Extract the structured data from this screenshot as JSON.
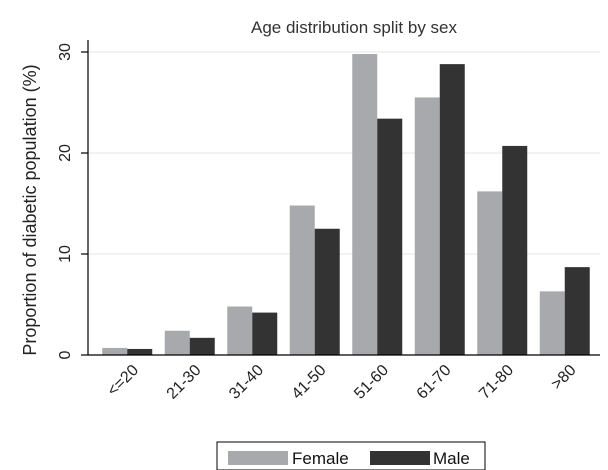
{
  "chart_data": {
    "type": "bar",
    "title": "Age distribution split by sex",
    "xlabel": "",
    "ylabel": "Proportion of diabetic population (%)",
    "categories": [
      "<=20",
      "21-30",
      "31-40",
      "41-50",
      "51-60",
      "61-70",
      "71-80",
      ">80"
    ],
    "series": [
      {
        "name": "Female",
        "color": "#a7a9ac",
        "values": [
          0.7,
          2.4,
          4.8,
          14.8,
          29.8,
          25.5,
          16.2,
          6.3
        ]
      },
      {
        "name": "Male",
        "color": "#333333",
        "values": [
          0.6,
          1.7,
          4.2,
          12.5,
          23.4,
          28.8,
          20.7,
          8.7
        ]
      }
    ],
    "ylim": [
      0,
      30
    ],
    "yticks": [
      "0",
      "10",
      "20",
      "30"
    ],
    "grid": true,
    "legend_position": "bottom"
  }
}
